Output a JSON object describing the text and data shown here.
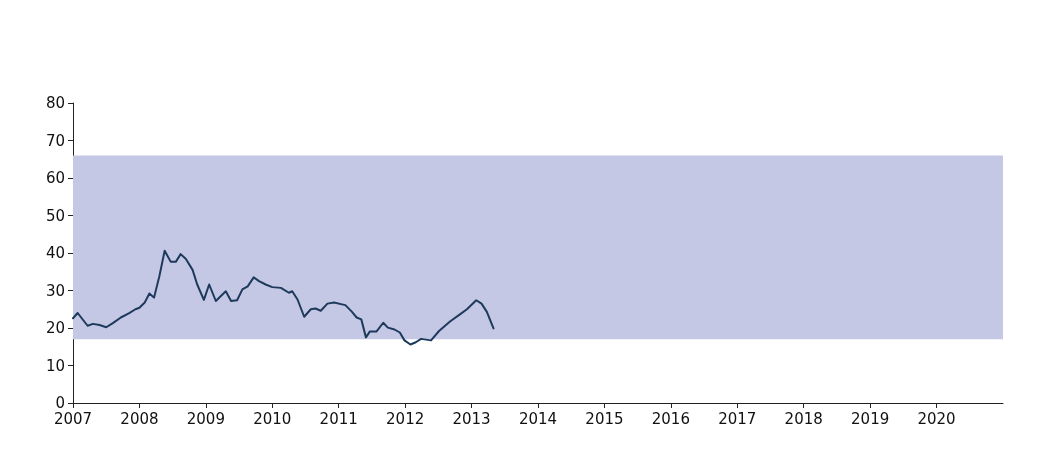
{
  "chart_data": {
    "type": "line",
    "x": [
      2007.0,
      2007.07,
      2007.22,
      2007.3,
      2007.4,
      2007.5,
      2007.6,
      2007.72,
      2007.84,
      2007.94,
      2008.0,
      2008.08,
      2008.15,
      2008.22,
      2008.3,
      2008.38,
      2008.47,
      2008.55,
      2008.62,
      2008.7,
      2008.8,
      2008.87,
      2008.97,
      2009.05,
      2009.15,
      2009.3,
      2009.38,
      2009.47,
      2009.55,
      2009.63,
      2009.72,
      2009.8,
      2009.9,
      2010.0,
      2010.13,
      2010.25,
      2010.3,
      2010.38,
      2010.48,
      2010.58,
      2010.65,
      2010.73,
      2010.83,
      2010.93,
      2011.05,
      2011.1,
      2011.2,
      2011.27,
      2011.34,
      2011.41,
      2011.47,
      2011.57,
      2011.67,
      2011.74,
      2011.84,
      2011.92,
      2011.99,
      2012.08,
      2012.16,
      2012.24,
      2012.39,
      2012.51,
      2012.68,
      2012.83,
      2012.93,
      2013.07,
      2013.15,
      2013.23,
      2013.33
    ],
    "series": [
      {
        "color": "#1d3a5c",
        "values": [
          22.6,
          24,
          20.6,
          21.1,
          20.8,
          20.2,
          21.3,
          22.8,
          23.9,
          25,
          25.4,
          26.8,
          29.2,
          28.1,
          33.8,
          40.6,
          37.7,
          37.7,
          39.7,
          38.4,
          35.5,
          31.6,
          27.5,
          31.6,
          27.2,
          29.8,
          27.2,
          27.4,
          30.3,
          31.1,
          33.5,
          32.5,
          31.6,
          30.9,
          30.7,
          29.4,
          29.8,
          27.6,
          23,
          25,
          25.2,
          24.6,
          26.5,
          26.8,
          26.3,
          26.1,
          24.3,
          22.8,
          22.3,
          17.5,
          19.1,
          19.1,
          21.4,
          20.1,
          19.6,
          18.8,
          16.7,
          15.6,
          16.2,
          17.1,
          16.7,
          19.2,
          21.8,
          23.7,
          25,
          27.4,
          26.5,
          24.3,
          19.9
        ]
      }
    ],
    "xlim": [
      2007,
      2021
    ],
    "xticks": [
      2007,
      2008,
      2009,
      2010,
      2011,
      2012,
      2013,
      2014,
      2015,
      2016,
      2017,
      2018,
      2019,
      2020
    ],
    "ylim": [
      0,
      80
    ],
    "yticks": [
      0,
      10,
      20,
      30,
      40,
      50,
      60,
      70,
      80
    ],
    "bands": [
      {
        "axis": "y",
        "from": 17,
        "to": 66,
        "color": "#c5c8e4"
      }
    ],
    "grid": false,
    "marker": "none",
    "line_style": "solid"
  }
}
